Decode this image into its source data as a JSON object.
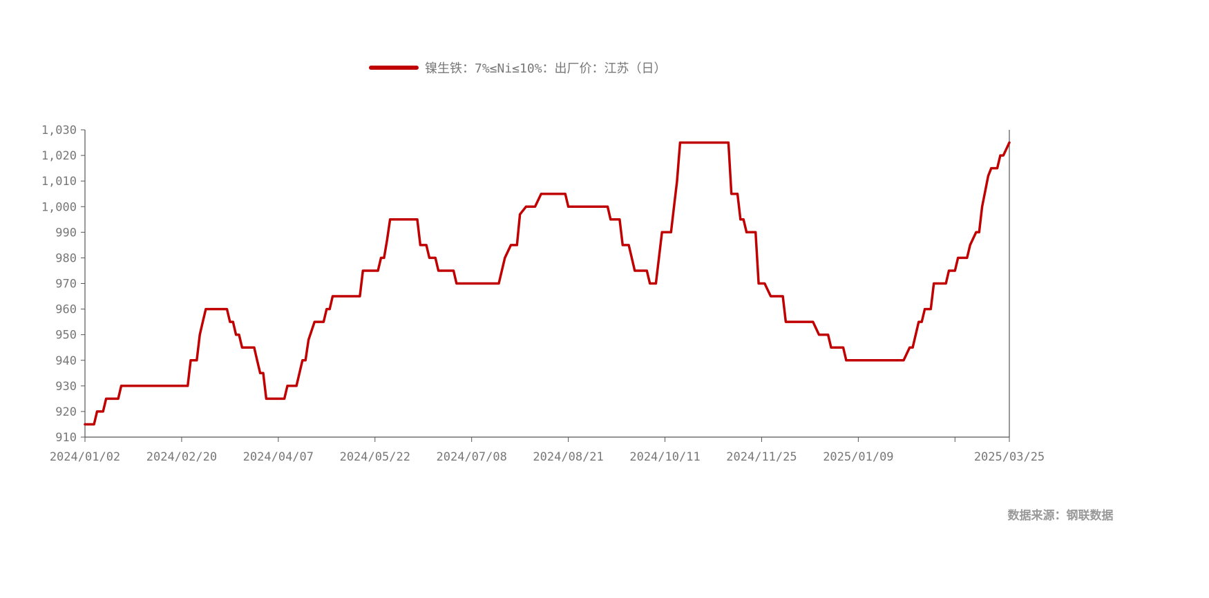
{
  "chart_data": {
    "type": "line",
    "title": "",
    "xlabel": "",
    "ylabel": "",
    "legend": {
      "position": "top-center",
      "entries": [
        "镍生铁：7%≤Ni≤10%：出厂价：江苏（日）"
      ]
    },
    "source": "数据来源：钢联数据",
    "ylim": [
      910,
      1030
    ],
    "yticks": [
      910,
      920,
      930,
      940,
      950,
      960,
      970,
      980,
      990,
      1000,
      1010,
      1020,
      1030
    ],
    "ytick_labels": [
      "910",
      "920",
      "930",
      "940",
      "950",
      "960",
      "970",
      "980",
      "990",
      "1,000",
      "1,010",
      "1,020",
      "1,030"
    ],
    "x_index_range": [
      0,
      306
    ],
    "xticks": [
      {
        "index": 0,
        "label": "2024/01/02"
      },
      {
        "index": 32,
        "label": "2024/02/20"
      },
      {
        "index": 64,
        "label": "2024/04/07"
      },
      {
        "index": 96,
        "label": "2024/05/22"
      },
      {
        "index": 128,
        "label": "2024/07/08"
      },
      {
        "index": 160,
        "label": "2024/08/21"
      },
      {
        "index": 192,
        "label": "2024/10/11"
      },
      {
        "index": 224,
        "label": "2024/11/25"
      },
      {
        "index": 256,
        "label": "2025/01/09"
      },
      {
        "index": 288,
        "label": ""
      },
      {
        "index": 306,
        "label": "2025/03/25"
      }
    ],
    "color": "#c00000",
    "series": [
      {
        "name": "镍生铁：7%≤Ni≤10%：出厂价：江苏（日）",
        "points": [
          [
            0,
            915
          ],
          [
            3,
            915
          ],
          [
            4,
            920
          ],
          [
            6,
            920
          ],
          [
            7,
            925
          ],
          [
            11,
            925
          ],
          [
            12,
            930
          ],
          [
            34,
            930
          ],
          [
            35,
            940
          ],
          [
            37,
            940
          ],
          [
            38,
            950
          ],
          [
            39,
            955
          ],
          [
            40,
            960
          ],
          [
            47,
            960
          ],
          [
            48,
            955
          ],
          [
            49,
            955
          ],
          [
            50,
            950
          ],
          [
            51,
            950
          ],
          [
            52,
            945
          ],
          [
            56,
            945
          ],
          [
            57,
            940
          ],
          [
            58,
            935
          ],
          [
            59,
            935
          ],
          [
            60,
            925
          ],
          [
            66,
            925
          ],
          [
            67,
            930
          ],
          [
            70,
            930
          ],
          [
            72,
            940
          ],
          [
            73,
            940
          ],
          [
            74,
            948
          ],
          [
            76,
            955
          ],
          [
            79,
            955
          ],
          [
            80,
            960
          ],
          [
            81,
            960
          ],
          [
            82,
            965
          ],
          [
            91,
            965
          ],
          [
            92,
            975
          ],
          [
            97,
            975
          ],
          [
            98,
            980
          ],
          [
            99,
            980
          ],
          [
            100,
            987
          ],
          [
            101,
            995
          ],
          [
            110,
            995
          ],
          [
            111,
            985
          ],
          [
            113,
            985
          ],
          [
            114,
            980
          ],
          [
            116,
            980
          ],
          [
            117,
            975
          ],
          [
            122,
            975
          ],
          [
            123,
            970
          ],
          [
            137,
            970
          ],
          [
            139,
            980
          ],
          [
            141,
            985
          ],
          [
            143,
            985
          ],
          [
            144,
            997
          ],
          [
            146,
            1000
          ],
          [
            149,
            1000
          ],
          [
            151,
            1005
          ],
          [
            159,
            1005
          ],
          [
            160,
            1000
          ],
          [
            173,
            1000
          ],
          [
            174,
            995
          ],
          [
            177,
            995
          ],
          [
            178,
            985
          ],
          [
            180,
            985
          ],
          [
            182,
            975
          ],
          [
            186,
            975
          ],
          [
            187,
            970
          ],
          [
            189,
            970
          ],
          [
            190,
            980
          ],
          [
            191,
            990
          ],
          [
            194,
            990
          ],
          [
            195,
            1000
          ],
          [
            196,
            1010
          ],
          [
            197,
            1025
          ],
          [
            213,
            1025
          ],
          [
            214,
            1005
          ],
          [
            216,
            1005
          ],
          [
            217,
            995
          ],
          [
            218,
            995
          ],
          [
            219,
            990
          ],
          [
            222,
            990
          ],
          [
            223,
            970
          ],
          [
            225,
            970
          ],
          [
            227,
            965
          ],
          [
            231,
            965
          ],
          [
            232,
            955
          ],
          [
            241,
            955
          ],
          [
            243,
            950
          ],
          [
            246,
            950
          ],
          [
            247,
            945
          ],
          [
            251,
            945
          ],
          [
            252,
            940
          ],
          [
            271,
            940
          ],
          [
            273,
            945
          ],
          [
            274,
            945
          ],
          [
            276,
            955
          ],
          [
            277,
            955
          ],
          [
            278,
            960
          ],
          [
            280,
            960
          ],
          [
            281,
            970
          ],
          [
            285,
            970
          ],
          [
            286,
            975
          ],
          [
            288,
            975
          ],
          [
            289,
            980
          ],
          [
            292,
            980
          ],
          [
            293,
            985
          ],
          [
            295,
            990
          ],
          [
            296,
            990
          ],
          [
            297,
            1000
          ],
          [
            299,
            1012
          ],
          [
            300,
            1015
          ],
          [
            302,
            1015
          ],
          [
            303,
            1020
          ],
          [
            304,
            1020
          ],
          [
            306,
            1025
          ]
        ]
      }
    ]
  }
}
